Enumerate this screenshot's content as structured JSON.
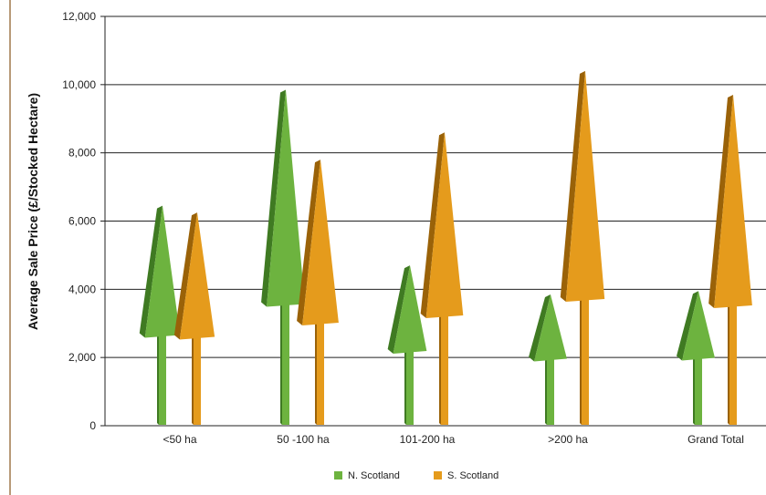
{
  "chart_data": {
    "type": "bar",
    "ylabel": "Average Sale Price (£/Stocked Hectare)",
    "xlabel": "",
    "title": "",
    "categories": [
      "<50 ha",
      "50 -100 ha",
      "101-200 ha",
      ">200 ha",
      "Grand Total"
    ],
    "ylim": [
      0,
      12000
    ],
    "yticks": [
      0,
      2000,
      4000,
      6000,
      8000,
      10000,
      12000
    ],
    "ytick_labels": [
      "0",
      "2,000",
      "4,000",
      "6,000",
      "8,000",
      "10,000",
      "12,000"
    ],
    "grid": true,
    "legend_position": "bottom",
    "series": [
      {
        "name": "N. Scotland",
        "color": "#6db33f",
        "dark": "#3f7a22",
        "values": [
          6450,
          9850,
          4700,
          3850,
          3950
        ]
      },
      {
        "name": "S. Scotland",
        "color": "#e59b1c",
        "dark": "#9a6208",
        "values": [
          6250,
          7800,
          8600,
          10400,
          9700
        ]
      }
    ]
  }
}
